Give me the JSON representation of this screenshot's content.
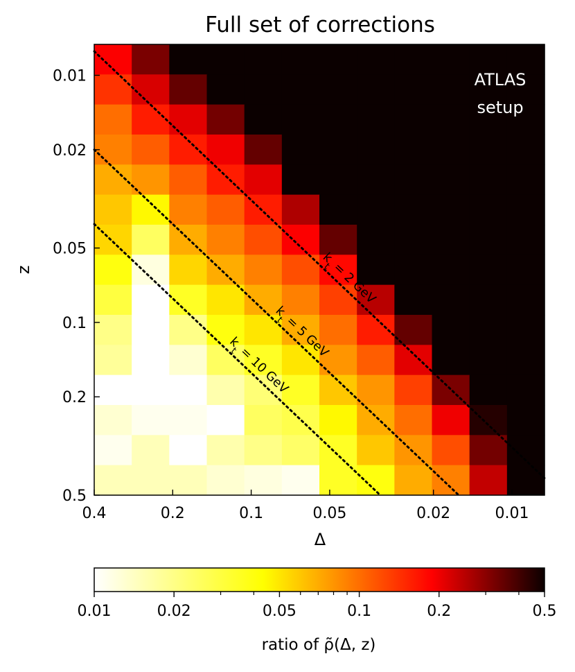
{
  "chart_data": {
    "type": "heatmap",
    "title": "Full set of corrections",
    "xlabel": "Δ",
    "ylabel": "z",
    "x_scale": "log",
    "y_scale": "log",
    "x_axis_reversed": true,
    "y_axis_inverted": true,
    "xlim": [
      0.4,
      0.0075
    ],
    "ylim": [
      0.0075,
      0.5
    ],
    "x_ticks": [
      {
        "value": 0.4,
        "label": "0.4"
      },
      {
        "value": 0.2,
        "label": "0.2"
      },
      {
        "value": 0.1,
        "label": "0.1"
      },
      {
        "value": 0.05,
        "label": "0.05"
      },
      {
        "value": 0.02,
        "label": "0.02"
      },
      {
        "value": 0.01,
        "label": "0.01"
      }
    ],
    "y_ticks": [
      {
        "value": 0.01,
        "label": "0.01"
      },
      {
        "value": 0.02,
        "label": "0.02"
      },
      {
        "value": 0.05,
        "label": "0.05"
      },
      {
        "value": 0.1,
        "label": "0.1"
      },
      {
        "value": 0.2,
        "label": "0.2"
      },
      {
        "value": 0.5,
        "label": "0.5"
      }
    ],
    "annotation_text": [
      "ATLAS",
      "setup"
    ],
    "contour_lines": [
      {
        "label": "kt = 2 GeV",
        "label_main": "k",
        "label_sub": "t",
        "label_rest": " = 2 GeV",
        "kt_gev": 2
      },
      {
        "label": "kt = 5 GeV",
        "label_main": "k",
        "label_sub": "t",
        "label_rest": " = 5 GeV",
        "kt_gev": 5
      },
      {
        "label": "kt = 10 GeV",
        "label_main": "k",
        "label_sub": "t",
        "label_rest": " = 10 GeV",
        "kt_gev": 10
      }
    ],
    "colorbar": {
      "scale": "log",
      "range": [
        0.01,
        0.5
      ],
      "colormap": "hot_r",
      "label": "ratio of ρ̃(Δ, z)",
      "ticks": [
        {
          "value": 0.01,
          "label": "0.01"
        },
        {
          "value": 0.02,
          "label": "0.02"
        },
        {
          "value": 0.05,
          "label": "0.05"
        },
        {
          "value": 0.1,
          "label": "0.1"
        },
        {
          "value": 0.2,
          "label": "0.2"
        },
        {
          "value": 0.5,
          "label": "0.5"
        }
      ],
      "minor_ticks": [
        0.03,
        0.04,
        0.06,
        0.07,
        0.08,
        0.09,
        0.3,
        0.4
      ]
    },
    "grid_columns": 12,
    "grid_rows": 15,
    "values": [
      [
        0.19,
        0.32,
        0.5,
        0.5,
        0.5,
        0.5,
        0.5,
        0.5,
        0.5,
        0.5,
        0.5,
        0.5
      ],
      [
        0.14,
        0.22,
        0.35,
        0.5,
        0.5,
        0.5,
        0.5,
        0.5,
        0.5,
        0.5,
        0.5,
        0.5
      ],
      [
        0.1,
        0.16,
        0.21,
        0.33,
        0.5,
        0.5,
        0.5,
        0.5,
        0.5,
        0.5,
        0.5,
        0.5
      ],
      [
        0.09,
        0.11,
        0.16,
        0.2,
        0.35,
        0.5,
        0.5,
        0.5,
        0.5,
        0.5,
        0.5,
        0.5
      ],
      [
        0.07,
        0.08,
        0.11,
        0.16,
        0.21,
        0.5,
        0.5,
        0.5,
        0.5,
        0.5,
        0.5,
        0.5
      ],
      [
        0.06,
        0.045,
        0.09,
        0.11,
        0.16,
        0.26,
        0.5,
        0.5,
        0.5,
        0.5,
        0.5,
        0.5
      ],
      [
        0.055,
        0.025,
        0.07,
        0.09,
        0.12,
        0.19,
        0.35,
        0.5,
        0.5,
        0.5,
        0.5,
        0.5
      ],
      [
        0.04,
        0.012,
        0.055,
        0.07,
        0.09,
        0.12,
        0.18,
        0.5,
        0.5,
        0.5,
        0.5,
        0.5
      ],
      [
        0.03,
        0.01,
        0.035,
        0.05,
        0.07,
        0.09,
        0.13,
        0.25,
        0.5,
        0.5,
        0.5,
        0.5
      ],
      [
        0.02,
        0.01,
        0.02,
        0.04,
        0.05,
        0.07,
        0.1,
        0.16,
        0.35,
        0.5,
        0.5,
        0.5
      ],
      [
        0.018,
        0.01,
        0.013,
        0.025,
        0.035,
        0.05,
        0.08,
        0.11,
        0.21,
        0.5,
        0.5,
        0.5
      ],
      [
        0.01,
        0.01,
        0.01,
        0.016,
        0.022,
        0.035,
        0.06,
        0.08,
        0.13,
        0.32,
        0.5,
        0.5
      ],
      [
        0.013,
        0.011,
        0.011,
        0.01,
        0.025,
        0.028,
        0.045,
        0.07,
        0.1,
        0.2,
        0.45,
        0.5
      ],
      [
        0.011,
        0.015,
        0.01,
        0.016,
        0.02,
        0.024,
        0.035,
        0.06,
        0.08,
        0.12,
        0.33,
        0.5
      ],
      [
        0.015,
        0.015,
        0.015,
        0.013,
        0.012,
        0.011,
        0.035,
        0.04,
        0.07,
        0.09,
        0.24,
        0.5
      ]
    ]
  }
}
